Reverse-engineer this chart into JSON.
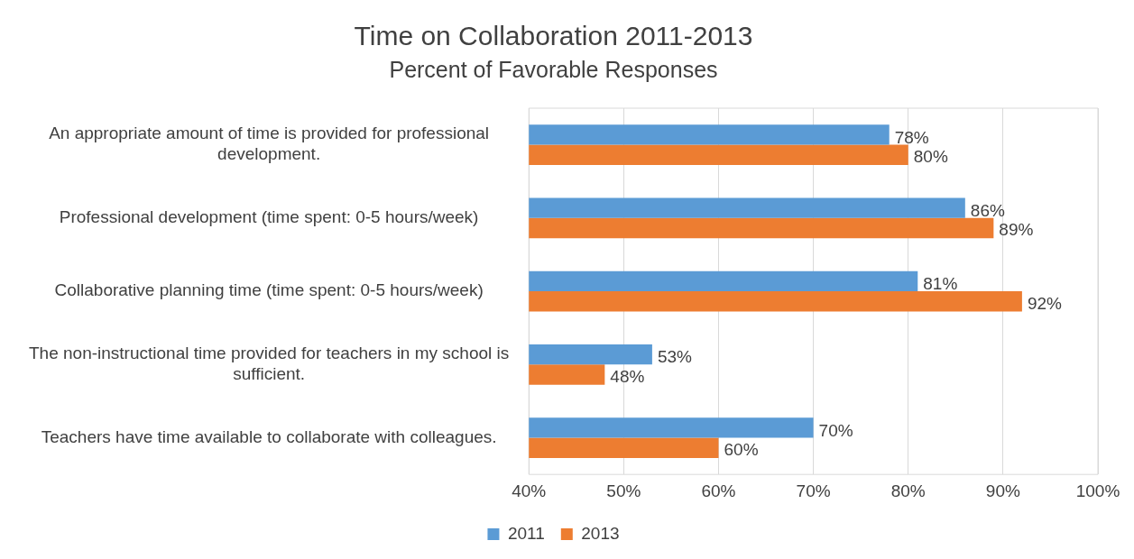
{
  "chart_data": {
    "type": "bar",
    "orientation": "horizontal",
    "title": "Time on Collaboration 2011-2013",
    "subtitle": "Percent of Favorable Responses",
    "categories": [
      "An appropriate amount of time is provided for professional development.",
      "Professional development (time spent: 0-5 hours/week)",
      "Collaborative planning time (time spent: 0-5 hours/week)",
      "The non-instructional time provided for teachers in my school is sufficient.",
      "Teachers have time available to collaborate with colleagues."
    ],
    "series": [
      {
        "name": "2011",
        "color": "#5b9bd5",
        "values": [
          78,
          86,
          81,
          53,
          70
        ],
        "value_labels": [
          "78%",
          "86%",
          "81%",
          "53%",
          "70%"
        ]
      },
      {
        "name": "2013",
        "color": "#ed7d31",
        "values": [
          80,
          89,
          92,
          48,
          60
        ],
        "value_labels": [
          "80%",
          "89%",
          "92%",
          "48%",
          "60%"
        ]
      }
    ],
    "xlim": [
      40,
      100
    ],
    "xticks": [
      {
        "value": 40,
        "label": "40%"
      },
      {
        "value": 50,
        "label": "50%"
      },
      {
        "value": 60,
        "label": "60%"
      },
      {
        "value": 70,
        "label": "70%"
      },
      {
        "value": 80,
        "label": "80%"
      },
      {
        "value": 90,
        "label": "90%"
      },
      {
        "value": 100,
        "label": "100%"
      }
    ],
    "grid": "x",
    "legend": "bottom"
  }
}
